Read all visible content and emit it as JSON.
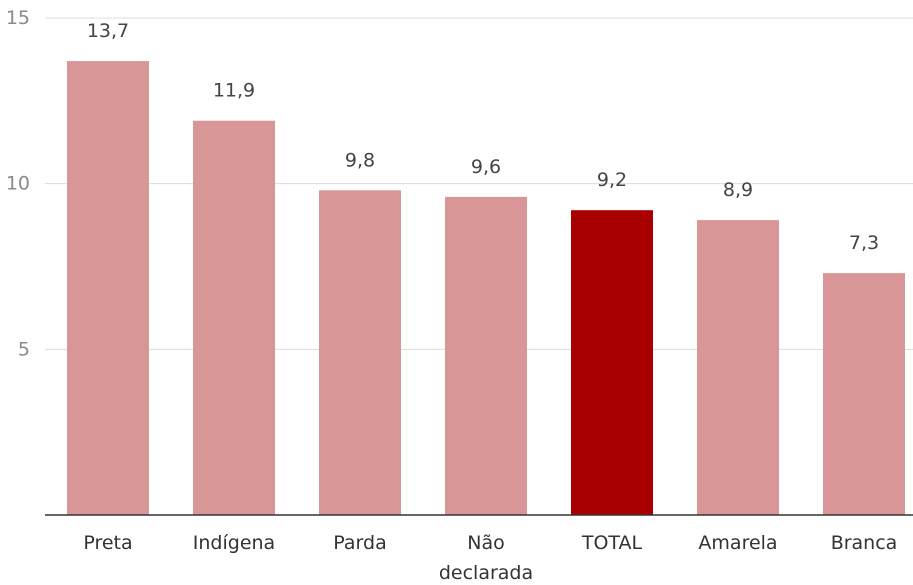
{
  "chart_data": {
    "type": "bar",
    "categories": [
      [
        "Preta"
      ],
      [
        "Indígena"
      ],
      [
        "Parda"
      ],
      [
        "Não",
        "declarada"
      ],
      [
        "TOTAL"
      ],
      [
        "Amarela"
      ],
      [
        "Branca"
      ]
    ],
    "values": [
      13.7,
      11.9,
      9.8,
      9.6,
      9.2,
      8.9,
      7.3
    ],
    "data_labels": [
      "13,7",
      "11,9",
      "9,8",
      "9,6",
      "9,2",
      "8,9",
      "7,3"
    ],
    "highlight_index": 4,
    "ylim": [
      0,
      15
    ],
    "yticks": [
      5,
      10,
      15
    ],
    "grid": true,
    "title": "",
    "xlabel": "",
    "ylabel": "",
    "colors": {
      "bar": "#d99696",
      "highlight": "#a80000"
    }
  }
}
